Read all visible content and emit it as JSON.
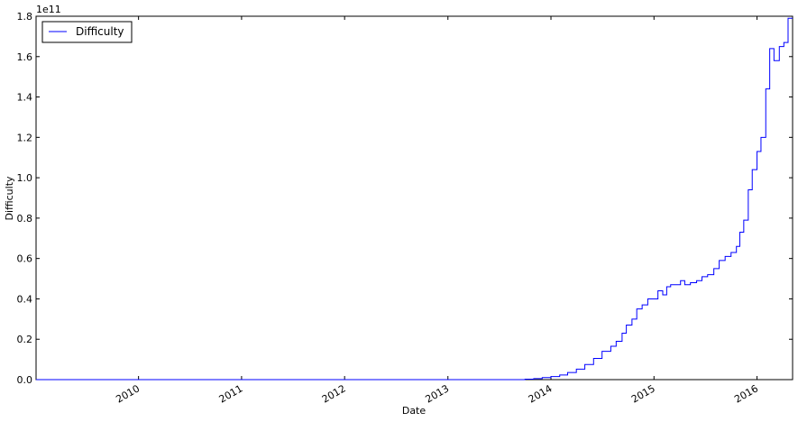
{
  "chart_data": {
    "type": "line",
    "title": "",
    "xlabel": "Date",
    "ylabel": "Difficulty",
    "y_offset_text": "1e11",
    "y_scale_exponent": 11,
    "xlim": [
      "2009-01-03",
      "2016-05-06"
    ],
    "ylim": [
      0,
      1.8
    ],
    "x_ticks": [
      "2010",
      "2011",
      "2012",
      "2013",
      "2014",
      "2015",
      "2016"
    ],
    "y_ticks": [
      "0.0",
      "0.2",
      "0.4",
      "0.6",
      "0.8",
      "1.0",
      "1.2",
      "1.4",
      "1.6",
      "1.8"
    ],
    "legend": {
      "position": "top-left",
      "entries": [
        "Difficulty"
      ]
    },
    "grid": false,
    "series": [
      {
        "name": "Difficulty",
        "color": "#0000ff",
        "step": true,
        "x": [
          "2009-01-03",
          "2013-08-01",
          "2013-10-01",
          "2013-11-01",
          "2013-12-01",
          "2014-01-01",
          "2014-02-01",
          "2014-03-01",
          "2014-04-01",
          "2014-05-01",
          "2014-06-01",
          "2014-07-01",
          "2014-08-01",
          "2014-08-20",
          "2014-09-10",
          "2014-09-25",
          "2014-10-15",
          "2014-11-01",
          "2014-11-20",
          "2014-12-10",
          "2015-01-01",
          "2015-01-15",
          "2015-02-01",
          "2015-02-15",
          "2015-03-01",
          "2015-03-20",
          "2015-04-05",
          "2015-04-20",
          "2015-05-10",
          "2015-06-01",
          "2015-06-20",
          "2015-07-10",
          "2015-08-01",
          "2015-08-20",
          "2015-09-10",
          "2015-10-01",
          "2015-10-20",
          "2015-11-01",
          "2015-11-15",
          "2015-12-01",
          "2015-12-15",
          "2016-01-01",
          "2016-01-15",
          "2016-02-01",
          "2016-02-15",
          "2016-03-01",
          "2016-03-20",
          "2016-04-05",
          "2016-04-20",
          "2016-05-06"
        ],
        "y": [
          0.0,
          0.0,
          0.002,
          0.005,
          0.01,
          0.015,
          0.023,
          0.035,
          0.052,
          0.075,
          0.105,
          0.14,
          0.165,
          0.19,
          0.23,
          0.27,
          0.3,
          0.35,
          0.37,
          0.4,
          0.4,
          0.44,
          0.42,
          0.46,
          0.47,
          0.47,
          0.49,
          0.47,
          0.48,
          0.49,
          0.51,
          0.52,
          0.55,
          0.59,
          0.61,
          0.63,
          0.66,
          0.73,
          0.79,
          0.94,
          1.04,
          1.13,
          1.2,
          1.44,
          1.64,
          1.58,
          1.65,
          1.67,
          1.79,
          1.79
        ]
      }
    ]
  }
}
